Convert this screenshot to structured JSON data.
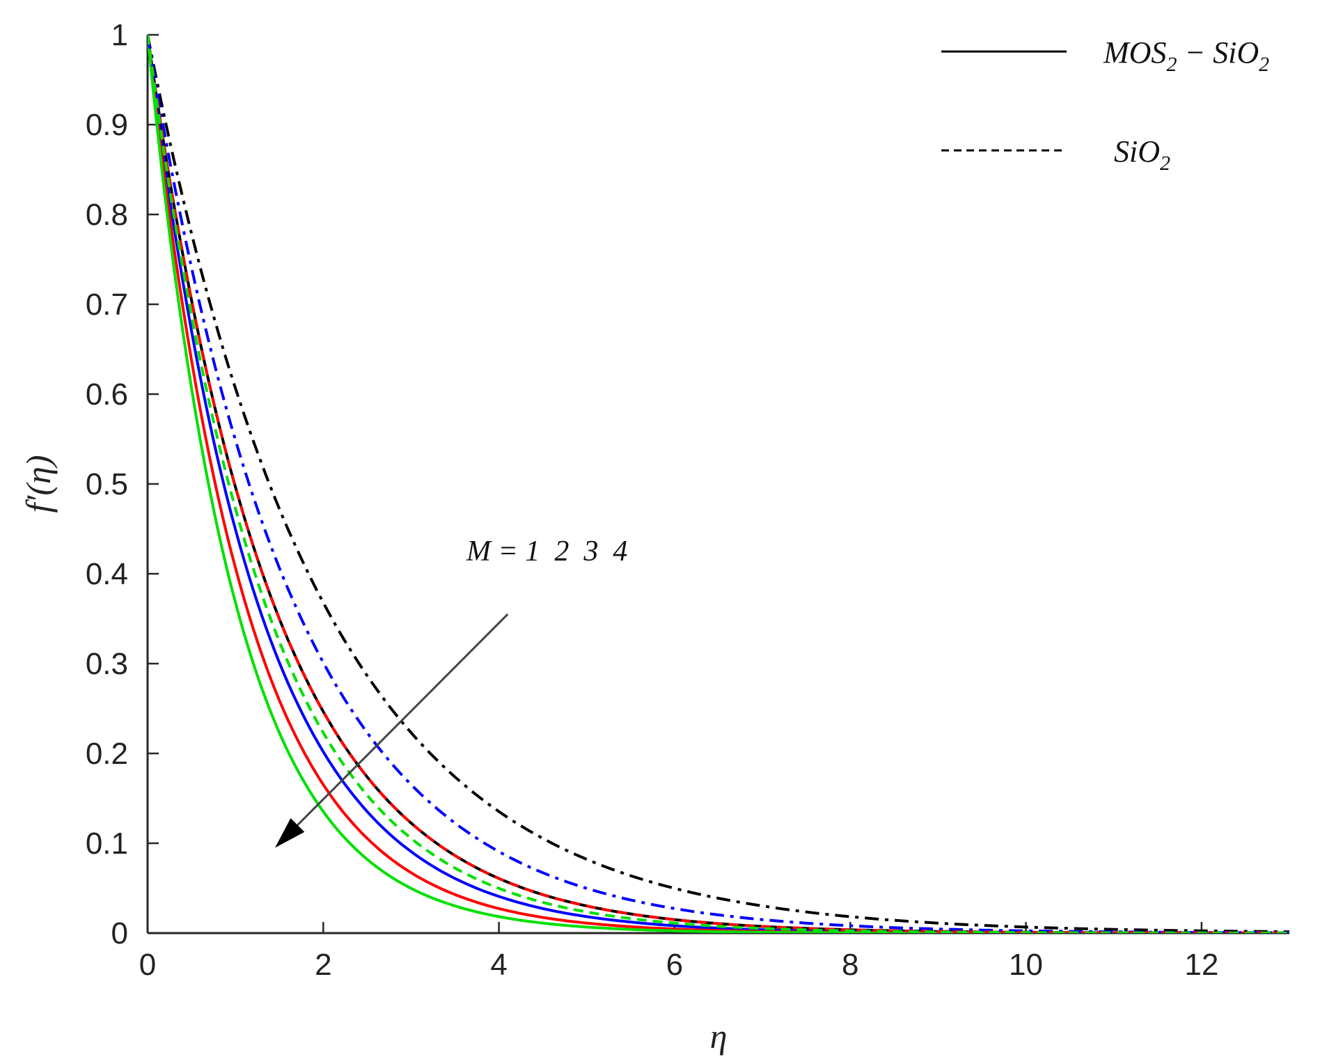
{
  "chart_data": {
    "type": "line",
    "title": "",
    "xlabel": "η",
    "ylabel": "f′(η)",
    "xlim": [
      0,
      13
    ],
    "ylim": [
      0,
      1
    ],
    "xticks": [
      0,
      2,
      4,
      6,
      8,
      10,
      12
    ],
    "yticks": [
      0,
      0.1,
      0.2,
      0.3,
      0.4,
      0.5,
      0.6,
      0.7,
      0.8,
      0.9,
      1
    ],
    "grid": false,
    "legend": {
      "placement": "top-right",
      "entries": [
        {
          "label_main": "MOS",
          "label_sub": "2",
          "label_rest": " − SiO",
          "label_sub2": "2",
          "style": "solid"
        },
        {
          "label_main": "SiO",
          "label_sub": "2",
          "label_rest": "",
          "label_sub2": "",
          "style": "dashed"
        }
      ]
    },
    "annotation": {
      "text": "M = 1  2  3  4",
      "arrow_from": [
        4.1,
        0.355
      ],
      "arrow_to": [
        1.45,
        0.095
      ]
    },
    "x": [
      0,
      0.5,
      1,
      1.5,
      2,
      2.5,
      3,
      3.5,
      4,
      4.5,
      5,
      5.5,
      6,
      7,
      8,
      9,
      10,
      11,
      12,
      13
    ],
    "series": [
      {
        "color": "#000000",
        "style": "solid",
        "values": [
          1,
          0.7046,
          0.4966,
          0.3499,
          0.2466,
          0.1738,
          0.1225,
          0.0863,
          0.0608,
          0.0428,
          0.0302,
          0.0213,
          0.015,
          0.0074,
          0.0037,
          0.0018,
          0.0009,
          0.0005,
          0.0003,
          0.0002
        ]
      },
      {
        "color": "#0000ff",
        "style": "solid",
        "values": [
          1,
          0.6703,
          0.4493,
          0.3012,
          0.2019,
          0.1353,
          0.0907,
          0.0608,
          0.0408,
          0.0273,
          0.0183,
          0.0123,
          0.0082,
          0.0037,
          0.0017,
          0.0008,
          0.0004,
          0.0002,
          0.0001,
          0.0001
        ]
      },
      {
        "color": "#ff0000",
        "style": "solid",
        "values": [
          1,
          0.6376,
          0.4066,
          0.2592,
          0.1653,
          0.1054,
          0.0672,
          0.0429,
          0.0273,
          0.0174,
          0.0111,
          0.0071,
          0.0045,
          0.0018,
          0.0007,
          0.0003,
          0.0001,
          0.0001,
          0.0001,
          0.0001
        ]
      },
      {
        "color": "#00e000",
        "style": "solid",
        "values": [
          1,
          0.6065,
          0.3679,
          0.2231,
          0.1353,
          0.0821,
          0.0498,
          0.0302,
          0.0183,
          0.0111,
          0.0067,
          0.0041,
          0.0025,
          0.0009,
          0.0003,
          0.0001,
          0.0001,
          0.0001,
          0.0001,
          0.0001
        ]
      },
      {
        "color": "#000000",
        "style": "dashdot",
        "values": [
          1,
          0.7788,
          0.6065,
          0.4724,
          0.3679,
          0.2865,
          0.2231,
          0.1738,
          0.1353,
          0.1054,
          0.0821,
          0.0639,
          0.0498,
          0.0302,
          0.0183,
          0.0111,
          0.0067,
          0.0041,
          0.0025,
          0.0015
        ]
      },
      {
        "color": "#0000ff",
        "style": "dashdot",
        "values": [
          1,
          0.7408,
          0.5488,
          0.4066,
          0.3012,
          0.2231,
          0.1653,
          0.1225,
          0.0907,
          0.0672,
          0.0498,
          0.0369,
          0.0273,
          0.015,
          0.0082,
          0.0045,
          0.0025,
          0.0014,
          0.0007,
          0.0004
        ]
      },
      {
        "color": "#ff0000",
        "style": "dashed",
        "values": [
          1,
          0.7046,
          0.4966,
          0.3499,
          0.2466,
          0.1738,
          0.1225,
          0.0863,
          0.0608,
          0.0428,
          0.0302,
          0.0213,
          0.015,
          0.0074,
          0.0037,
          0.0018,
          0.0009,
          0.0005,
          0.0003,
          0.0002
        ]
      },
      {
        "color": "#00e000",
        "style": "dashed",
        "values": [
          1,
          0.6873,
          0.4724,
          0.3247,
          0.2231,
          0.1534,
          0.1054,
          0.0724,
          0.0498,
          0.0342,
          0.0235,
          0.0162,
          0.0111,
          0.0052,
          0.0025,
          0.0012,
          0.0006,
          0.0003,
          0.0001,
          0.0001
        ]
      }
    ]
  }
}
